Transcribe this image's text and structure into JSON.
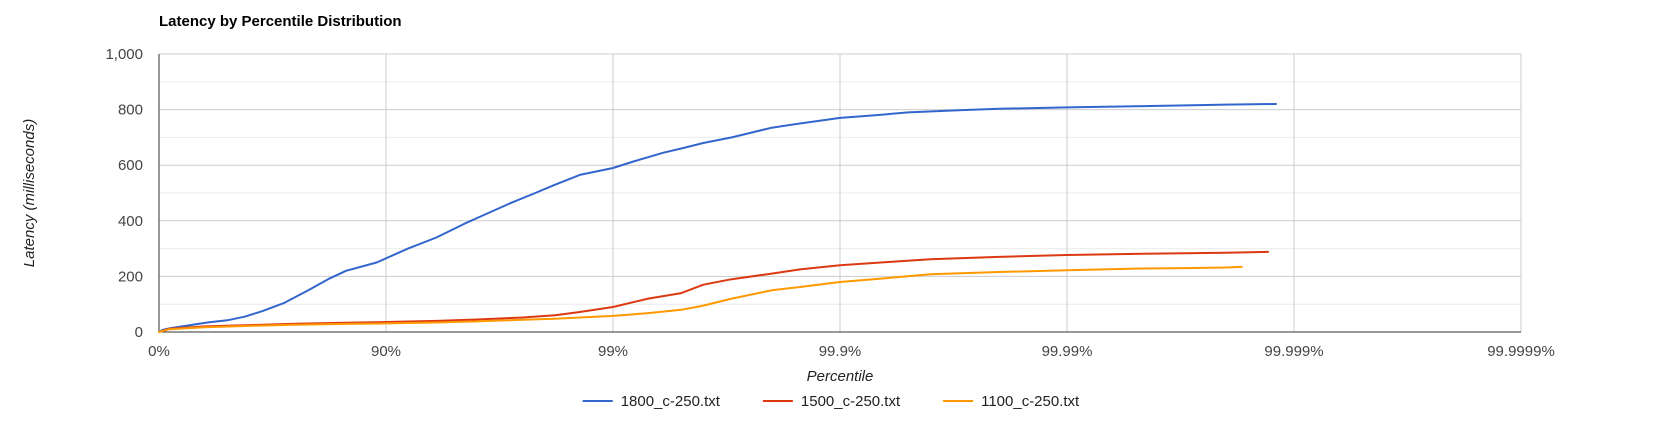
{
  "chart_data": {
    "type": "line",
    "title": "Latency by Percentile Distribution",
    "xlabel": "Percentile",
    "ylabel": "Latency (milliseconds)",
    "x_scale": "log-inverse-percentile",
    "x_ticks": [
      "0%",
      "90%",
      "99%",
      "99.9%",
      "99.99%",
      "99.999%",
      "99.9999%"
    ],
    "y_ticks": [
      "0",
      "200",
      "400",
      "600",
      "800",
      "1,000"
    ],
    "ylim": [
      0,
      1000
    ],
    "grid": true,
    "legend_position": "bottom",
    "series": [
      {
        "name": "1800_c-250.txt",
        "color": "#3366cc",
        "points": [
          [
            "0%",
            0
          ],
          [
            "4%",
            8
          ],
          [
            "10%",
            13
          ],
          [
            "21%",
            20
          ],
          [
            "30%",
            27
          ],
          [
            "40%",
            35
          ],
          [
            "50%",
            42
          ],
          [
            "58%",
            55
          ],
          [
            "65%",
            75
          ],
          [
            "72%",
            105
          ],
          [
            "78%",
            150
          ],
          [
            "82%",
            190
          ],
          [
            "85%",
            220
          ],
          [
            "89%",
            250
          ],
          [
            "92%",
            300
          ],
          [
            "94%",
            340
          ],
          [
            "95.5%",
            390
          ],
          [
            "96.5%",
            430
          ],
          [
            "97.2%",
            465
          ],
          [
            "97.8%",
            500
          ],
          [
            "98.2%",
            530
          ],
          [
            "98.6%",
            565
          ],
          [
            "99%",
            590
          ],
          [
            "99.2%",
            615
          ],
          [
            "99.4%",
            645
          ],
          [
            "99.5%",
            660
          ],
          [
            "99.6%",
            680
          ],
          [
            "99.7%",
            700
          ],
          [
            "99.8%",
            735
          ],
          [
            "99.85%",
            750
          ],
          [
            "99.9%",
            770
          ],
          [
            "99.93%",
            780
          ],
          [
            "99.95%",
            790
          ],
          [
            "99.97%",
            798
          ],
          [
            "99.98%",
            803
          ],
          [
            "99.99%",
            808
          ],
          [
            "99.995%",
            812
          ],
          [
            "99.997%",
            815
          ],
          [
            "99.998%",
            818
          ],
          [
            "99.9988%",
            820
          ]
        ]
      },
      {
        "name": "1500_c-250.txt",
        "color": "#dc3912",
        "points": [
          [
            "0%",
            0
          ],
          [
            "10%",
            12
          ],
          [
            "37%",
            20
          ],
          [
            "60%",
            25
          ],
          [
            "75%",
            30
          ],
          [
            "85%",
            33
          ],
          [
            "90%",
            36
          ],
          [
            "94%",
            40
          ],
          [
            "96%",
            45
          ],
          [
            "97.5%",
            52
          ],
          [
            "98.2%",
            60
          ],
          [
            "98.6%",
            72
          ],
          [
            "99%",
            90
          ],
          [
            "99.3%",
            120
          ],
          [
            "99.5%",
            140
          ],
          [
            "99.6%",
            170
          ],
          [
            "99.7%",
            190
          ],
          [
            "99.8%",
            210
          ],
          [
            "99.85%",
            225
          ],
          [
            "99.9%",
            240
          ],
          [
            "99.94%",
            252
          ],
          [
            "99.96%",
            262
          ],
          [
            "99.98%",
            270
          ],
          [
            "99.99%",
            277
          ],
          [
            "99.995%",
            281
          ],
          [
            "99.997%",
            283
          ],
          [
            "99.998%",
            285
          ],
          [
            "99.9987%",
            288
          ]
        ]
      },
      {
        "name": "1100_c-250.txt",
        "color": "#ff9900",
        "points": [
          [
            "0%",
            0
          ],
          [
            "10%",
            10
          ],
          [
            "37%",
            17
          ],
          [
            "60%",
            22
          ],
          [
            "75%",
            26
          ],
          [
            "85%",
            29
          ],
          [
            "90%",
            31
          ],
          [
            "94%",
            34
          ],
          [
            "96%",
            38
          ],
          [
            "97.5%",
            44
          ],
          [
            "98.2%",
            48
          ],
          [
            "98.6%",
            52
          ],
          [
            "99%",
            58
          ],
          [
            "99.3%",
            68
          ],
          [
            "99.5%",
            80
          ],
          [
            "99.6%",
            95
          ],
          [
            "99.7%",
            120
          ],
          [
            "99.8%",
            150
          ],
          [
            "99.85%",
            162
          ],
          [
            "99.9%",
            180
          ],
          [
            "99.94%",
            195
          ],
          [
            "99.96%",
            208
          ],
          [
            "99.98%",
            216
          ],
          [
            "99.99%",
            222
          ],
          [
            "99.995%",
            228
          ],
          [
            "99.997%",
            230
          ],
          [
            "99.998%",
            232
          ],
          [
            "99.9983%",
            234
          ]
        ]
      }
    ]
  }
}
